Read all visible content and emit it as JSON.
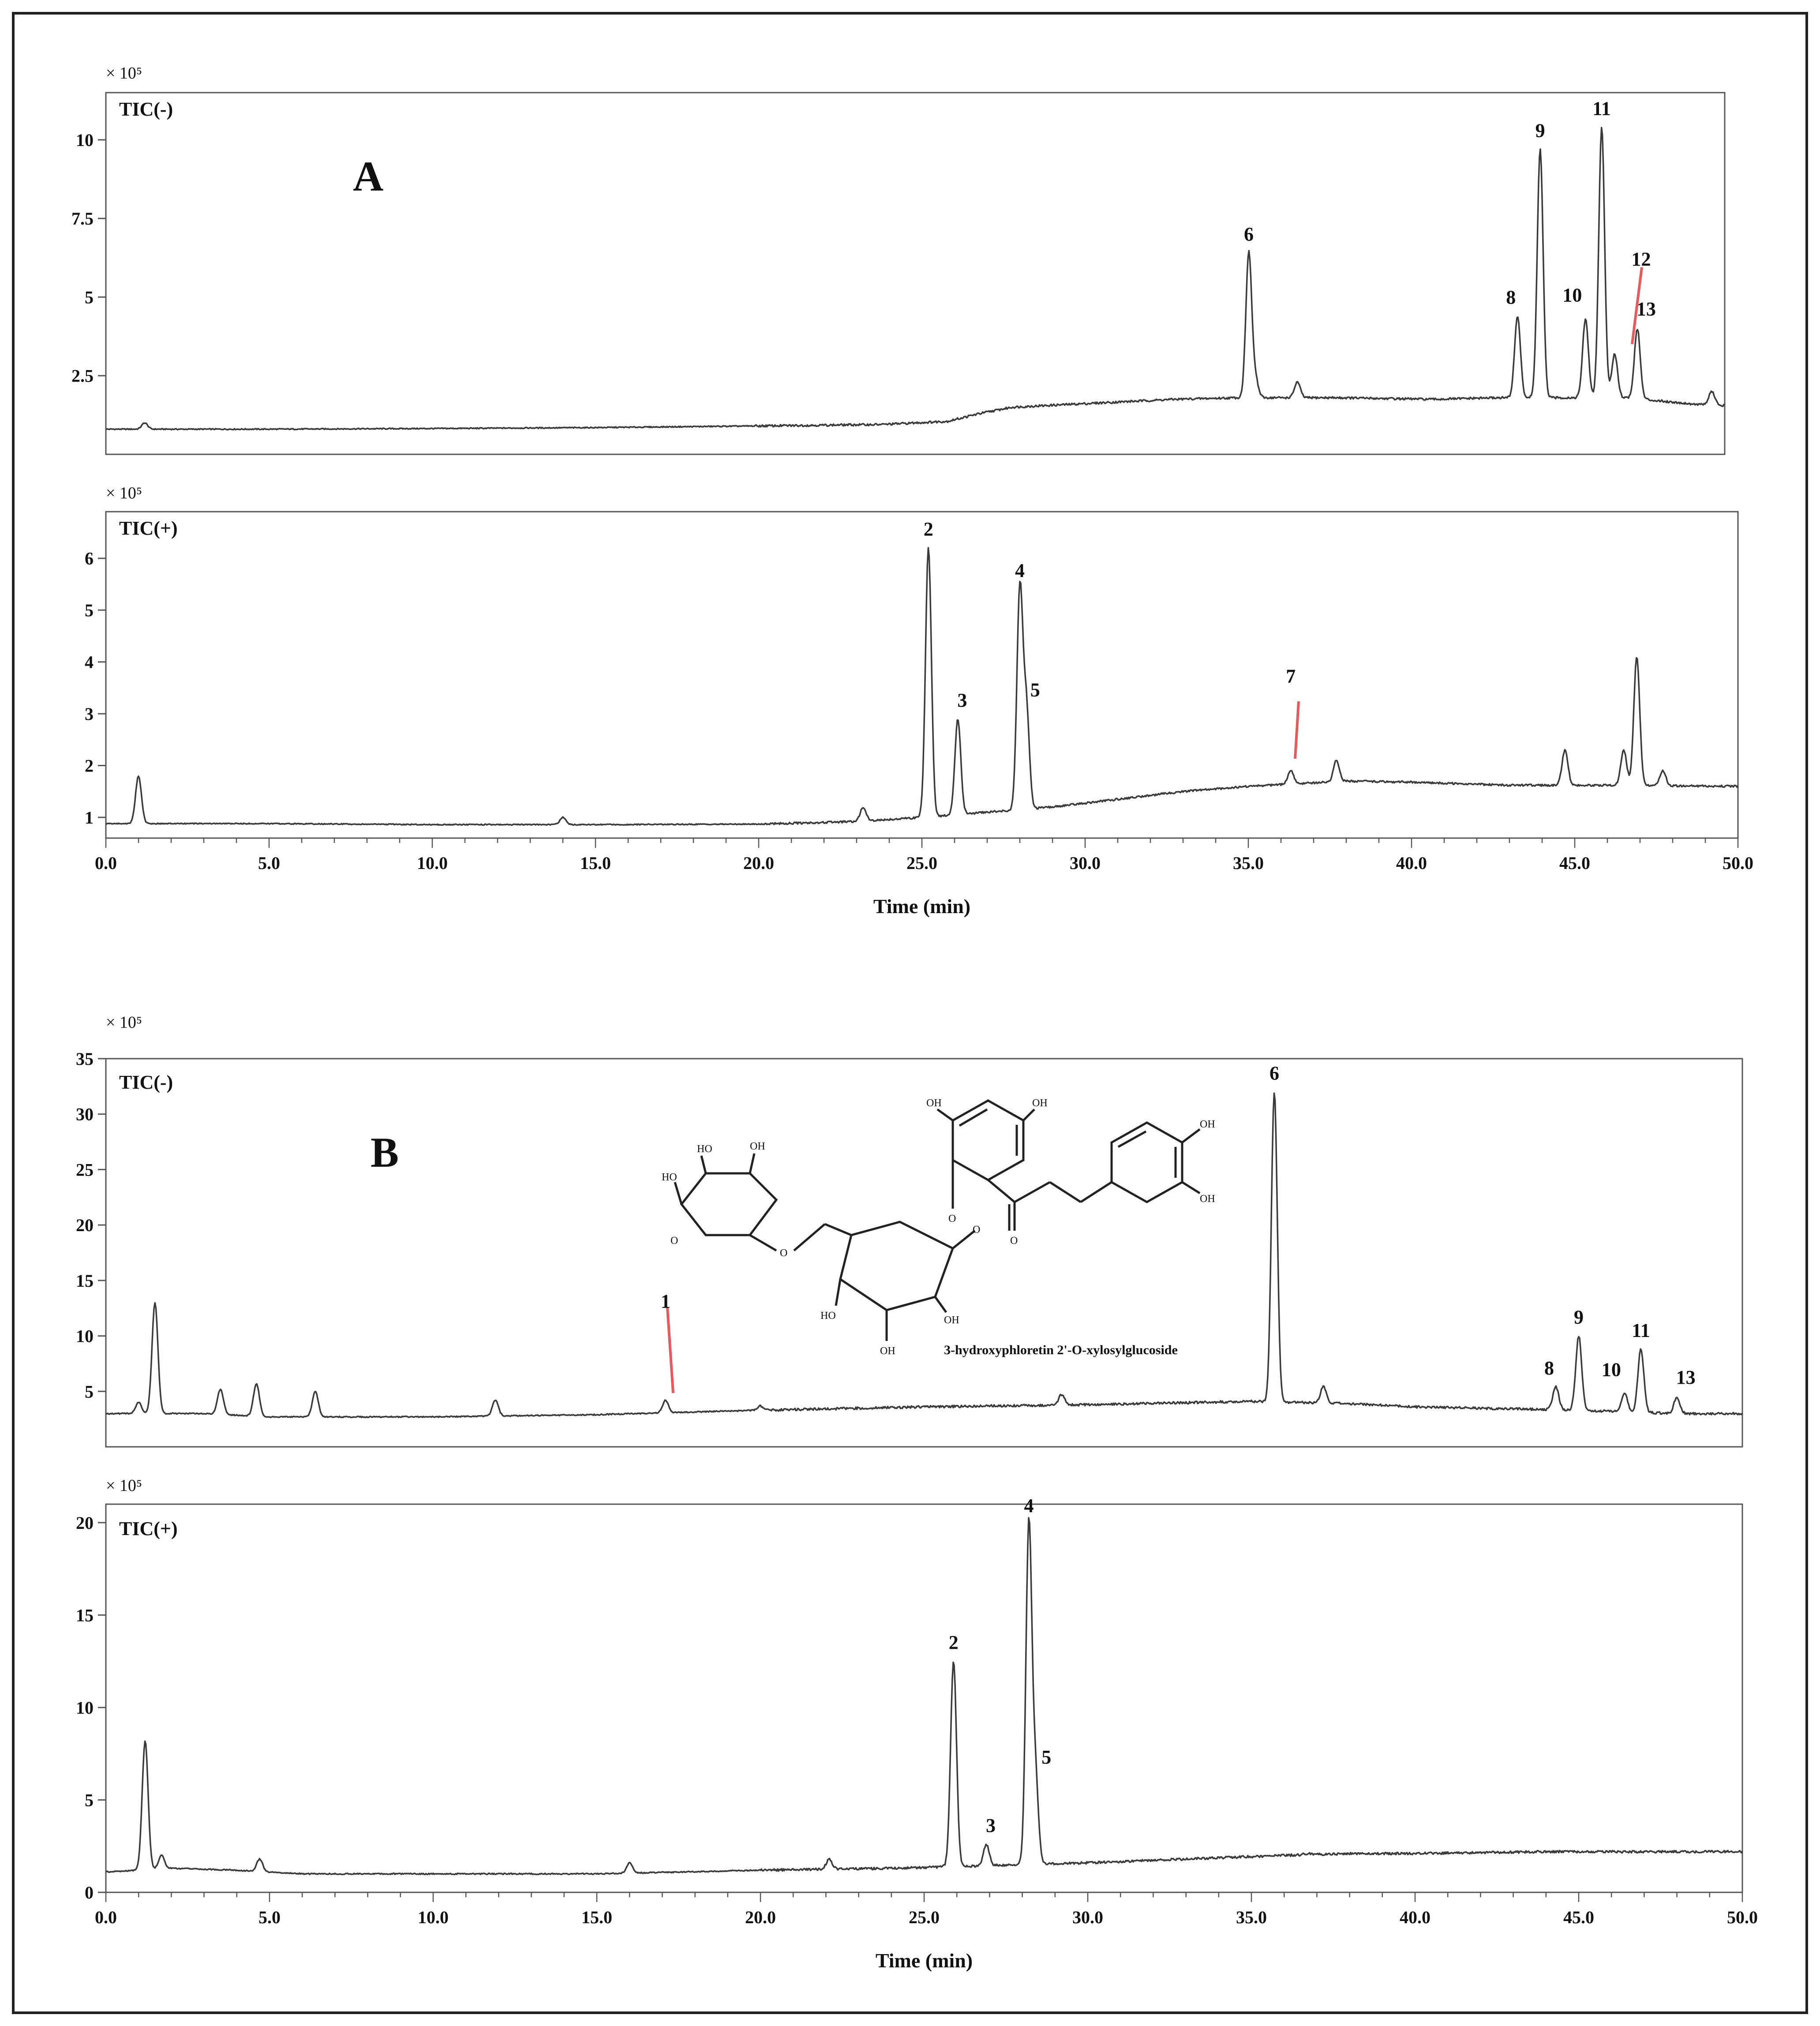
{
  "colors": {
    "trace": "#3a3a3a",
    "axis": "#555555",
    "annotation_line": "#e8585f",
    "frame": "#222222"
  },
  "figure_label_A": "A",
  "figure_label_B": "B",
  "structure_caption": "3-hydroxyphloretin 2'-O-xylosylglucoside",
  "structure_atoms": [
    "OH",
    "OH",
    "OH",
    "OH",
    "HO",
    "HO",
    "HO",
    "O",
    "O",
    "O",
    "O",
    "O",
    "OH",
    "OH",
    "OH"
  ],
  "chart_data": [
    {
      "type": "line",
      "panel": "A",
      "mode": "TIC(-)",
      "title_label": "TIC(-)",
      "scale_label": "× 10⁵",
      "xlim": [
        0,
        50
      ],
      "ylim": [
        0,
        11.5
      ],
      "yticks": [
        "2.5",
        "5",
        "7.5",
        "10"
      ],
      "ytick_values": [
        2.5,
        5,
        7.5,
        10
      ],
      "xticks": [],
      "xlabel": "",
      "grid": false,
      "baseline": [
        [
          0,
          0.8
        ],
        [
          5,
          0.8
        ],
        [
          10,
          0.82
        ],
        [
          15,
          0.85
        ],
        [
          20,
          0.9
        ],
        [
          24,
          0.95
        ],
        [
          26,
          1.05
        ],
        [
          27,
          1.3
        ],
        [
          28,
          1.5
        ],
        [
          30,
          1.6
        ],
        [
          33,
          1.75
        ],
        [
          35,
          1.8
        ],
        [
          38,
          1.8
        ],
        [
          41,
          1.75
        ],
        [
          43,
          1.8
        ],
        [
          45,
          1.8
        ],
        [
          47,
          1.8
        ],
        [
          49,
          1.6
        ],
        [
          50,
          1.55
        ]
      ],
      "peaks": [
        {
          "x": 1.2,
          "y": 1.0,
          "label": ""
        },
        {
          "x": 35.3,
          "y": 6.4,
          "label": "6"
        },
        {
          "x": 35.5,
          "y": 2.4,
          "label": ""
        },
        {
          "x": 36.8,
          "y": 2.3,
          "label": ""
        },
        {
          "x": 43.6,
          "y": 4.4,
          "label": "8"
        },
        {
          "x": 44.3,
          "y": 9.7,
          "label": "9"
        },
        {
          "x": 45.7,
          "y": 4.3,
          "label": "10"
        },
        {
          "x": 46.2,
          "y": 10.4,
          "label": "11"
        },
        {
          "x": 46.6,
          "y": 3.2,
          "label": "12"
        },
        {
          "x": 47.3,
          "y": 4.0,
          "label": "13"
        },
        {
          "x": 49.6,
          "y": 2.0,
          "label": ""
        }
      ]
    },
    {
      "type": "line",
      "panel": "A",
      "mode": "TIC(+)",
      "title_label": "TIC(+)",
      "scale_label": "× 10⁵",
      "xlim": [
        0,
        50
      ],
      "ylim": [
        0.6,
        6.9
      ],
      "yticks": [
        "1",
        "2",
        "3",
        "4",
        "5",
        "6"
      ],
      "ytick_values": [
        1,
        2,
        3,
        4,
        5,
        6
      ],
      "xticks": [
        "0.0",
        "5.0",
        "10.0",
        "15.0",
        "20.0",
        "25.0",
        "30.0",
        "35.0",
        "40.0",
        "45.0",
        "50.0"
      ],
      "xtick_values": [
        0,
        5,
        10,
        15,
        20,
        25,
        30,
        35,
        40,
        45,
        50
      ],
      "xlabel": "Time (min)",
      "grid": false,
      "baseline": [
        [
          0,
          0.88
        ],
        [
          5,
          0.88
        ],
        [
          10,
          0.86
        ],
        [
          15,
          0.86
        ],
        [
          20,
          0.87
        ],
        [
          23,
          0.92
        ],
        [
          25,
          1.0
        ],
        [
          27,
          1.1
        ],
        [
          29,
          1.2
        ],
        [
          31,
          1.35
        ],
        [
          33,
          1.5
        ],
        [
          35,
          1.6
        ],
        [
          38,
          1.7
        ],
        [
          40,
          1.68
        ],
        [
          43,
          1.62
        ],
        [
          46,
          1.62
        ],
        [
          50,
          1.6
        ]
      ],
      "peaks": [
        {
          "x": 1.0,
          "y": 1.8,
          "label": ""
        },
        {
          "x": 14.0,
          "y": 1.0,
          "label": ""
        },
        {
          "x": 23.2,
          "y": 1.2,
          "label": ""
        },
        {
          "x": 25.2,
          "y": 6.2,
          "label": "2"
        },
        {
          "x": 26.1,
          "y": 2.9,
          "label": "3"
        },
        {
          "x": 28.0,
          "y": 5.4,
          "label": "4"
        },
        {
          "x": 28.2,
          "y": 3.1,
          "label": "5"
        },
        {
          "x": 36.3,
          "y": 1.9,
          "label": "7"
        },
        {
          "x": 37.7,
          "y": 2.1,
          "label": ""
        },
        {
          "x": 44.7,
          "y": 2.3,
          "label": ""
        },
        {
          "x": 46.5,
          "y": 2.3,
          "label": ""
        },
        {
          "x": 46.9,
          "y": 4.1,
          "label": ""
        },
        {
          "x": 47.7,
          "y": 1.9,
          "label": ""
        }
      ]
    },
    {
      "type": "line",
      "panel": "B",
      "mode": "TIC(-)",
      "title_label": "TIC(-)",
      "scale_label": "× 10⁵",
      "xlim": [
        0,
        50
      ],
      "ylim": [
        0,
        35
      ],
      "yticks": [
        "5",
        "10",
        "15",
        "20",
        "25",
        "30",
        "35"
      ],
      "ytick_values": [
        5,
        10,
        15,
        20,
        25,
        30,
        35
      ],
      "xticks": [],
      "xlabel": "",
      "grid": false,
      "baseline": [
        [
          0,
          3.0
        ],
        [
          3,
          3.0
        ],
        [
          5,
          2.7
        ],
        [
          10,
          2.7
        ],
        [
          15,
          2.9
        ],
        [
          20,
          3.3
        ],
        [
          25,
          3.6
        ],
        [
          30,
          3.8
        ],
        [
          35,
          4.1
        ],
        [
          38,
          3.9
        ],
        [
          40,
          3.6
        ],
        [
          45,
          3.3
        ],
        [
          48,
          3.0
        ],
        [
          50,
          3.0
        ]
      ],
      "peaks": [
        {
          "x": 1.0,
          "y": 4.0,
          "label": ""
        },
        {
          "x": 1.5,
          "y": 13.0,
          "label": ""
        },
        {
          "x": 3.5,
          "y": 5.2,
          "label": ""
        },
        {
          "x": 4.6,
          "y": 5.7,
          "label": ""
        },
        {
          "x": 6.4,
          "y": 5.0,
          "label": ""
        },
        {
          "x": 11.9,
          "y": 4.2,
          "label": ""
        },
        {
          "x": 17.1,
          "y": 4.2,
          "label": "1"
        },
        {
          "x": 20.0,
          "y": 3.7,
          "label": ""
        },
        {
          "x": 29.2,
          "y": 4.7,
          "label": ""
        },
        {
          "x": 35.7,
          "y": 32.0,
          "label": "6"
        },
        {
          "x": 37.2,
          "y": 5.4,
          "label": ""
        },
        {
          "x": 44.3,
          "y": 5.4,
          "label": "8"
        },
        {
          "x": 45.0,
          "y": 10.0,
          "label": "9"
        },
        {
          "x": 46.4,
          "y": 4.8,
          "label": "10"
        },
        {
          "x": 46.9,
          "y": 8.8,
          "label": "11"
        },
        {
          "x": 48.0,
          "y": 4.5,
          "label": "13"
        }
      ]
    },
    {
      "type": "line",
      "panel": "B",
      "mode": "TIC(+)",
      "title_label": "TIC(+)",
      "scale_label": "× 10⁵",
      "xlim": [
        0,
        50
      ],
      "ylim": [
        0,
        21
      ],
      "yticks": [
        "0",
        "5",
        "10",
        "15",
        "20"
      ],
      "ytick_values": [
        0,
        5,
        10,
        15,
        20
      ],
      "xticks": [
        "0.0",
        "5.0",
        "10.0",
        "15.0",
        "20.0",
        "25.0",
        "30.0",
        "35.0",
        "40.0",
        "45.0",
        "50.0"
      ],
      "xtick_values": [
        0,
        5,
        10,
        15,
        20,
        25,
        30,
        35,
        40,
        45,
        50
      ],
      "xlabel": "Time (min)",
      "grid": false,
      "baseline": [
        [
          0,
          1.1
        ],
        [
          2,
          1.3
        ],
        [
          4,
          1.2
        ],
        [
          6,
          1.0
        ],
        [
          10,
          1.0
        ],
        [
          15,
          1.0
        ],
        [
          20,
          1.2
        ],
        [
          24,
          1.3
        ],
        [
          26,
          1.4
        ],
        [
          28,
          1.5
        ],
        [
          30,
          1.6
        ],
        [
          33,
          1.8
        ],
        [
          36,
          2.0
        ],
        [
          38,
          2.1
        ],
        [
          40,
          2.1
        ],
        [
          44,
          2.2
        ],
        [
          47,
          2.2
        ],
        [
          50,
          2.2
        ]
      ],
      "peaks": [
        {
          "x": 1.2,
          "y": 8.2,
          "label": ""
        },
        {
          "x": 1.7,
          "y": 2.0,
          "label": ""
        },
        {
          "x": 4.7,
          "y": 1.8,
          "label": ""
        },
        {
          "x": 16.0,
          "y": 1.6,
          "label": ""
        },
        {
          "x": 22.1,
          "y": 1.8,
          "label": ""
        },
        {
          "x": 25.9,
          "y": 12.5,
          "label": "2"
        },
        {
          "x": 26.9,
          "y": 2.6,
          "label": "3"
        },
        {
          "x": 28.2,
          "y": 19.9,
          "label": "4"
        },
        {
          "x": 28.4,
          "y": 6.3,
          "label": "5"
        },
        {
          "x": 36.7,
          "y": 2.1,
          "label": ""
        }
      ]
    }
  ]
}
